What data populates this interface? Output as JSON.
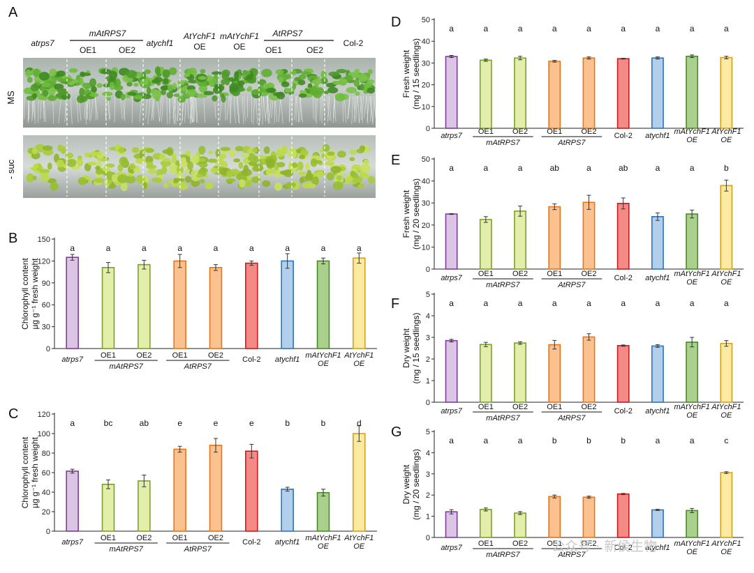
{
  "photo_panel": {
    "letter": "A",
    "row_labels": [
      "MS",
      "- suc"
    ],
    "columns": [
      {
        "label": "atrps7",
        "italic": true
      },
      {
        "label": "OE1",
        "italic": false
      },
      {
        "label": "OE2",
        "italic": false
      },
      {
        "label": "atychf1",
        "italic": true
      },
      {
        "label": "AtYchF1",
        "italic": true,
        "sub": "OE"
      },
      {
        "label": "mAtYchF1",
        "italic": true,
        "sub": "OE"
      },
      {
        "label": "OE1",
        "italic": false
      },
      {
        "label": "OE2",
        "italic": false
      },
      {
        "label": "Col-2",
        "italic": false
      }
    ],
    "groups": [
      "mAtRPS7",
      "AtRPS7"
    ]
  },
  "colors": {
    "atrps7": {
      "fill": "#dcc4e4",
      "stroke": "#7b3f96"
    },
    "mAtRPS7": {
      "fill": "#e2eeaa",
      "stroke": "#7aa22c"
    },
    "AtRPS7": {
      "fill": "#fbc18f",
      "stroke": "#e5761c"
    },
    "Col-2": {
      "fill": "#f48a86",
      "stroke": "#c61c20"
    },
    "atychf1": {
      "fill": "#b2d0ec",
      "stroke": "#2f73b8"
    },
    "mAtYchF1": {
      "fill": "#a9d08c",
      "stroke": "#4a8a2b"
    },
    "AtYchF1": {
      "fill": "#fce9a2",
      "stroke": "#d4a21a"
    }
  },
  "watermark": "公众号 · 新侯生物",
  "chart_data": [
    {
      "panel": "B",
      "type": "bar",
      "ylabel": [
        "Chlorophyll content",
        "µg g⁻¹ fresh weight"
      ],
      "ylim": [
        0,
        150
      ],
      "yticks": [
        0,
        30,
        60,
        90,
        120,
        150
      ],
      "categories": [
        "atrps7",
        "OE1",
        "OE2",
        "OE1",
        "OE2",
        "Col-2",
        "atychf1",
        "mAtYchF1 OE",
        "AtYchF1 OE"
      ],
      "groups": [
        {
          "label": "mAtRPS7",
          "members": [
            1,
            2
          ]
        },
        {
          "label": "AtRPS7",
          "members": [
            3,
            4
          ]
        }
      ],
      "values": [
        125,
        111,
        115,
        120,
        111,
        117,
        120,
        120,
        124
      ],
      "errors": [
        4,
        7,
        6,
        9,
        4,
        3,
        10,
        4,
        7
      ],
      "letters": [
        "a",
        "a",
        "a",
        "a",
        "a",
        "a",
        "a",
        "a",
        "a"
      ]
    },
    {
      "panel": "C",
      "type": "bar",
      "ylabel": [
        "Chlorophyll content",
        "µg g⁻¹ fresh weight"
      ],
      "ylim": [
        0,
        120
      ],
      "yticks": [
        0,
        20,
        40,
        60,
        80,
        100,
        120
      ],
      "categories": [
        "atrps7",
        "OE1",
        "OE2",
        "OE1",
        "OE2",
        "Col-2",
        "atychf1",
        "mAtYchF1 OE",
        "AtYchF1 OE"
      ],
      "groups": [
        {
          "label": "mAtRPS7",
          "members": [
            1,
            2
          ]
        },
        {
          "label": "AtRPS7",
          "members": [
            3,
            4
          ]
        }
      ],
      "values": [
        61.5,
        48,
        51.5,
        84,
        88,
        82,
        43,
        39.5,
        100
      ],
      "errors": [
        2,
        4.5,
        6,
        3,
        7,
        7,
        2,
        3.5,
        8
      ],
      "letters": [
        "a",
        "bc",
        "ab",
        "e",
        "e",
        "e",
        "b",
        "b",
        "d"
      ]
    },
    {
      "panel": "D",
      "type": "bar",
      "ylabel": [
        "Fresh weight",
        "(mg / 15 seedlings)"
      ],
      "ylim": [
        0,
        50
      ],
      "yticks": [
        0,
        10,
        20,
        30,
        40,
        50
      ],
      "categories": [
        "atrps7",
        "OE1",
        "OE2",
        "OE1",
        "OE2",
        "Col-2",
        "atychf1",
        "mAtYchF1 OE",
        "AtYchF1 OE"
      ],
      "groups": [
        {
          "label": "mAtRPS7",
          "members": [
            1,
            2
          ]
        },
        {
          "label": "AtRPS7",
          "members": [
            3,
            4
          ]
        }
      ],
      "values": [
        33,
        31.3,
        32.3,
        30.8,
        32.3,
        32,
        32.3,
        33.1,
        32.5
      ],
      "errors": [
        0.5,
        0.5,
        0.8,
        0.4,
        0.5,
        0.2,
        0.5,
        0.6,
        0.6
      ],
      "letters": [
        "a",
        "a",
        "a",
        "a",
        "a",
        "a",
        "a",
        "a",
        "a"
      ]
    },
    {
      "panel": "E",
      "type": "bar",
      "ylabel": [
        "Fresh weight",
        "(mg / 20 seedlings)"
      ],
      "ylim": [
        0,
        50
      ],
      "yticks": [
        0,
        10,
        20,
        30,
        40,
        50
      ],
      "categories": [
        "atrps7",
        "OE1",
        "OE2",
        "OE1",
        "OE2",
        "Col-2",
        "atychf1",
        "mAtYchF1 OE",
        "AtYchF1 OE"
      ],
      "groups": [
        {
          "label": "mAtRPS7",
          "members": [
            1,
            2
          ]
        },
        {
          "label": "AtRPS7",
          "members": [
            3,
            4
          ]
        }
      ],
      "values": [
        25,
        22.5,
        26.3,
        28.3,
        30.3,
        29.8,
        23.8,
        25,
        37.9
      ],
      "errors": [
        0.2,
        1.3,
        2.3,
        1.3,
        3.2,
        2.5,
        1.7,
        1.8,
        2.5
      ],
      "letters": [
        "a",
        "a",
        "a",
        "ab",
        "a",
        "ab",
        "a",
        "a",
        "b"
      ]
    },
    {
      "panel": "F",
      "type": "bar",
      "ylabel": [
        "Dry weight",
        "(mg / 15 seedlings)"
      ],
      "ylim": [
        0,
        5
      ],
      "yticks": [
        0,
        1,
        2,
        3,
        4,
        5
      ],
      "categories": [
        "atrps7",
        "OE1",
        "OE2",
        "OE1",
        "OE2",
        "Col-2",
        "atychf1",
        "mAtYchF1 OE",
        "AtYchF1 OE"
      ],
      "groups": [
        {
          "label": "mAtRPS7",
          "members": [
            1,
            2
          ]
        },
        {
          "label": "AtRPS7",
          "members": [
            3,
            4
          ]
        }
      ],
      "values": [
        2.85,
        2.67,
        2.74,
        2.66,
        3.02,
        2.62,
        2.6,
        2.78,
        2.72
      ],
      "errors": [
        0.06,
        0.1,
        0.06,
        0.2,
        0.15,
        0.03,
        0.06,
        0.22,
        0.13
      ],
      "letters": [
        "a",
        "a",
        "a",
        "a",
        "a",
        "a",
        "a",
        "a",
        "a"
      ]
    },
    {
      "panel": "G",
      "type": "bar",
      "ylabel": [
        "Dry weight",
        "(mg / 20 seedlings)"
      ],
      "ylim": [
        0,
        5
      ],
      "yticks": [
        0,
        1,
        2,
        3,
        4,
        5
      ],
      "categories": [
        "atrps7",
        "OE1",
        "OE2",
        "OE1",
        "OE2",
        "Col-2",
        "atychf1",
        "mAtYchF1 OE",
        "AtYchF1 OE"
      ],
      "groups": [
        {
          "label": "mAtRPS7",
          "members": [
            1,
            2
          ]
        },
        {
          "label": "AtRPS7",
          "members": [
            3,
            4
          ]
        }
      ],
      "values": [
        1.21,
        1.32,
        1.15,
        1.93,
        1.9,
        2.05,
        1.3,
        1.27,
        3.06
      ],
      "errors": [
        0.1,
        0.07,
        0.07,
        0.07,
        0.05,
        0.03,
        0.03,
        0.1,
        0.04
      ],
      "letters": [
        "a",
        "a",
        "a",
        "b",
        "b",
        "b",
        "a",
        "a",
        "c"
      ]
    }
  ]
}
